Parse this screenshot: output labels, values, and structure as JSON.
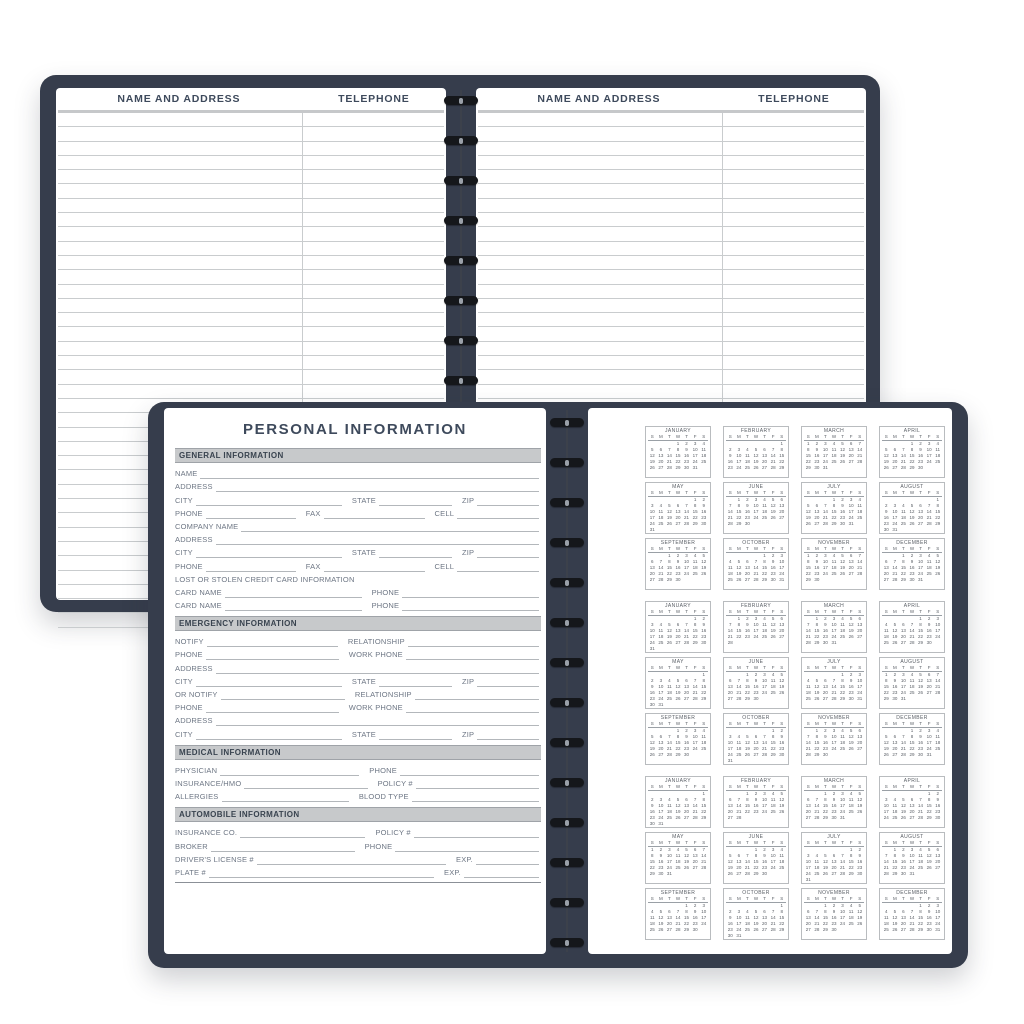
{
  "colors": {
    "cover": "#363d4c",
    "ink": "#3e4a5c",
    "label": "#6d7684",
    "line": "#b3b7bb",
    "barbg": "#c7c9cb"
  },
  "address_page": {
    "col1_header": "NAME AND ADDRESS",
    "col2_header": "TELEPHONE",
    "line_count": 36
  },
  "personal_page": {
    "title": "PERSONAL INFORMATION",
    "sections": [
      {
        "header": "GENERAL INFORMATION",
        "rows": [
          {
            "fields": [
              {
                "label": "NAME",
                "flex": 100
              }
            ]
          },
          {
            "fields": [
              {
                "label": "ADDRESS",
                "flex": 100
              }
            ]
          },
          {
            "fields": [
              {
                "label": "CITY",
                "flex": 52
              },
              {
                "label": "STATE",
                "flex": 26
              },
              {
                "label": "ZIP",
                "flex": 22
              }
            ]
          },
          {
            "fields": [
              {
                "label": "PHONE",
                "flex": 33
              },
              {
                "label": "FAX",
                "flex": 37
              },
              {
                "label": "CELL",
                "flex": 30
              }
            ]
          },
          {
            "fields": [
              {
                "label": "COMPANY NAME",
                "flex": 100
              }
            ]
          },
          {
            "fields": [
              {
                "label": "ADDRESS",
                "flex": 100
              }
            ]
          },
          {
            "fields": [
              {
                "label": "CITY",
                "flex": 52
              },
              {
                "label": "STATE",
                "flex": 26
              },
              {
                "label": "ZIP",
                "flex": 22
              }
            ]
          },
          {
            "fields": [
              {
                "label": "PHONE",
                "flex": 33
              },
              {
                "label": "FAX",
                "flex": 37
              },
              {
                "label": "CELL",
                "flex": 30
              }
            ]
          },
          {
            "text": "LOST OR STOLEN CREDIT CARD INFORMATION"
          },
          {
            "fields": [
              {
                "label": "CARD NAME",
                "flex": 50
              },
              {
                "label": "PHONE",
                "flex": 50
              }
            ]
          },
          {
            "fields": [
              {
                "label": "CARD NAME",
                "flex": 50
              },
              {
                "label": "PHONE",
                "flex": 50
              }
            ]
          }
        ]
      },
      {
        "header": "EMERGENCY INFORMATION",
        "rows": [
          {
            "fields": [
              {
                "label": "NOTIFY",
                "flex": 50
              },
              {
                "label": "RELATIONSHIP",
                "flex": 50
              }
            ]
          },
          {
            "fields": [
              {
                "label": "PHONE",
                "flex": 50
              },
              {
                "label": "WORK PHONE",
                "flex": 50
              }
            ]
          },
          {
            "fields": [
              {
                "label": "ADDRESS",
                "flex": 100
              }
            ]
          },
          {
            "fields": [
              {
                "label": "CITY",
                "flex": 52
              },
              {
                "label": "STATE",
                "flex": 26
              },
              {
                "label": "ZIP",
                "flex": 22
              }
            ]
          },
          {
            "fields": [
              {
                "label": "OR NOTIFY",
                "flex": 50
              },
              {
                "label": "RELATIONSHIP",
                "flex": 50
              }
            ]
          },
          {
            "fields": [
              {
                "label": "PHONE",
                "flex": 50
              },
              {
                "label": "WORK PHONE",
                "flex": 50
              }
            ]
          },
          {
            "fields": [
              {
                "label": "ADDRESS",
                "flex": 100
              }
            ]
          },
          {
            "fields": [
              {
                "label": "CITY",
                "flex": 52
              },
              {
                "label": "STATE",
                "flex": 26
              },
              {
                "label": "ZIP",
                "flex": 22
              }
            ]
          }
        ]
      },
      {
        "header": "MEDICAL INFORMATION",
        "rows": [
          {
            "fields": [
              {
                "label": "PHYSICIAN",
                "flex": 50
              },
              {
                "label": "PHONE",
                "flex": 50
              }
            ]
          },
          {
            "fields": [
              {
                "label": "INSURANCE/HMO",
                "flex": 50
              },
              {
                "label": "POLICY #",
                "flex": 50
              }
            ]
          },
          {
            "fields": [
              {
                "label": "ALLERGIES",
                "flex": 50
              },
              {
                "label": "BLOOD TYPE",
                "flex": 50
              }
            ]
          }
        ]
      },
      {
        "header": "AUTOMOBILE INFORMATION",
        "rows": [
          {
            "fields": [
              {
                "label": "INSURANCE CO.",
                "flex": 50
              },
              {
                "label": "POLICY #",
                "flex": 50
              }
            ]
          },
          {
            "fields": [
              {
                "label": "BROKER",
                "flex": 50
              },
              {
                "label": "PHONE",
                "flex": 50
              }
            ]
          },
          {
            "fields": [
              {
                "label": "DRIVER'S LICENSE #",
                "flex": 75
              },
              {
                "label": "EXP.",
                "flex": 25
              }
            ]
          },
          {
            "fields": [
              {
                "label": "PLATE #",
                "flex": 75
              },
              {
                "label": "EXP.",
                "flex": 25
              }
            ]
          }
        ]
      }
    ]
  },
  "calendar_page": {
    "day_header": [
      "S",
      "M",
      "T",
      "W",
      "T",
      "F",
      "S"
    ],
    "groups": [
      {
        "months": [
          {
            "name": "JANUARY",
            "start": 3,
            "days": 31
          },
          {
            "name": "FEBRUARY",
            "start": 6,
            "days": 29
          },
          {
            "name": "MARCH",
            "start": 0,
            "days": 31
          },
          {
            "name": "APRIL",
            "start": 3,
            "days": 30
          },
          {
            "name": "MAY",
            "start": 5,
            "days": 31
          },
          {
            "name": "JUNE",
            "start": 1,
            "days": 30
          },
          {
            "name": "JULY",
            "start": 3,
            "days": 31
          },
          {
            "name": "AUGUST",
            "start": 6,
            "days": 31
          },
          {
            "name": "SEPTEMBER",
            "start": 2,
            "days": 30
          },
          {
            "name": "OCTOBER",
            "start": 4,
            "days": 31
          },
          {
            "name": "NOVEMBER",
            "start": 0,
            "days": 30
          },
          {
            "name": "DECEMBER",
            "start": 2,
            "days": 31
          }
        ]
      },
      {
        "months": [
          {
            "name": "JANUARY",
            "start": 5,
            "days": 31
          },
          {
            "name": "FEBRUARY",
            "start": 1,
            "days": 28
          },
          {
            "name": "MARCH",
            "start": 1,
            "days": 31
          },
          {
            "name": "APRIL",
            "start": 4,
            "days": 30
          },
          {
            "name": "MAY",
            "start": 6,
            "days": 31
          },
          {
            "name": "JUNE",
            "start": 2,
            "days": 30
          },
          {
            "name": "JULY",
            "start": 4,
            "days": 31
          },
          {
            "name": "AUGUST",
            "start": 0,
            "days": 31
          },
          {
            "name": "SEPTEMBER",
            "start": 3,
            "days": 30
          },
          {
            "name": "OCTOBER",
            "start": 5,
            "days": 31
          },
          {
            "name": "NOVEMBER",
            "start": 1,
            "days": 30
          },
          {
            "name": "DECEMBER",
            "start": 3,
            "days": 31
          }
        ]
      },
      {
        "months": [
          {
            "name": "JANUARY",
            "start": 6,
            "days": 31
          },
          {
            "name": "FEBRUARY",
            "start": 2,
            "days": 28
          },
          {
            "name": "MARCH",
            "start": 2,
            "days": 31
          },
          {
            "name": "APRIL",
            "start": 5,
            "days": 30
          },
          {
            "name": "MAY",
            "start": 0,
            "days": 31
          },
          {
            "name": "JUNE",
            "start": 3,
            "days": 30
          },
          {
            "name": "JULY",
            "start": 5,
            "days": 31
          },
          {
            "name": "AUGUST",
            "start": 1,
            "days": 31
          },
          {
            "name": "SEPTEMBER",
            "start": 4,
            "days": 30
          },
          {
            "name": "OCTOBER",
            "start": 6,
            "days": 31
          },
          {
            "name": "NOVEMBER",
            "start": 2,
            "days": 30
          },
          {
            "name": "DECEMBER",
            "start": 4,
            "days": 31
          }
        ]
      }
    ]
  }
}
